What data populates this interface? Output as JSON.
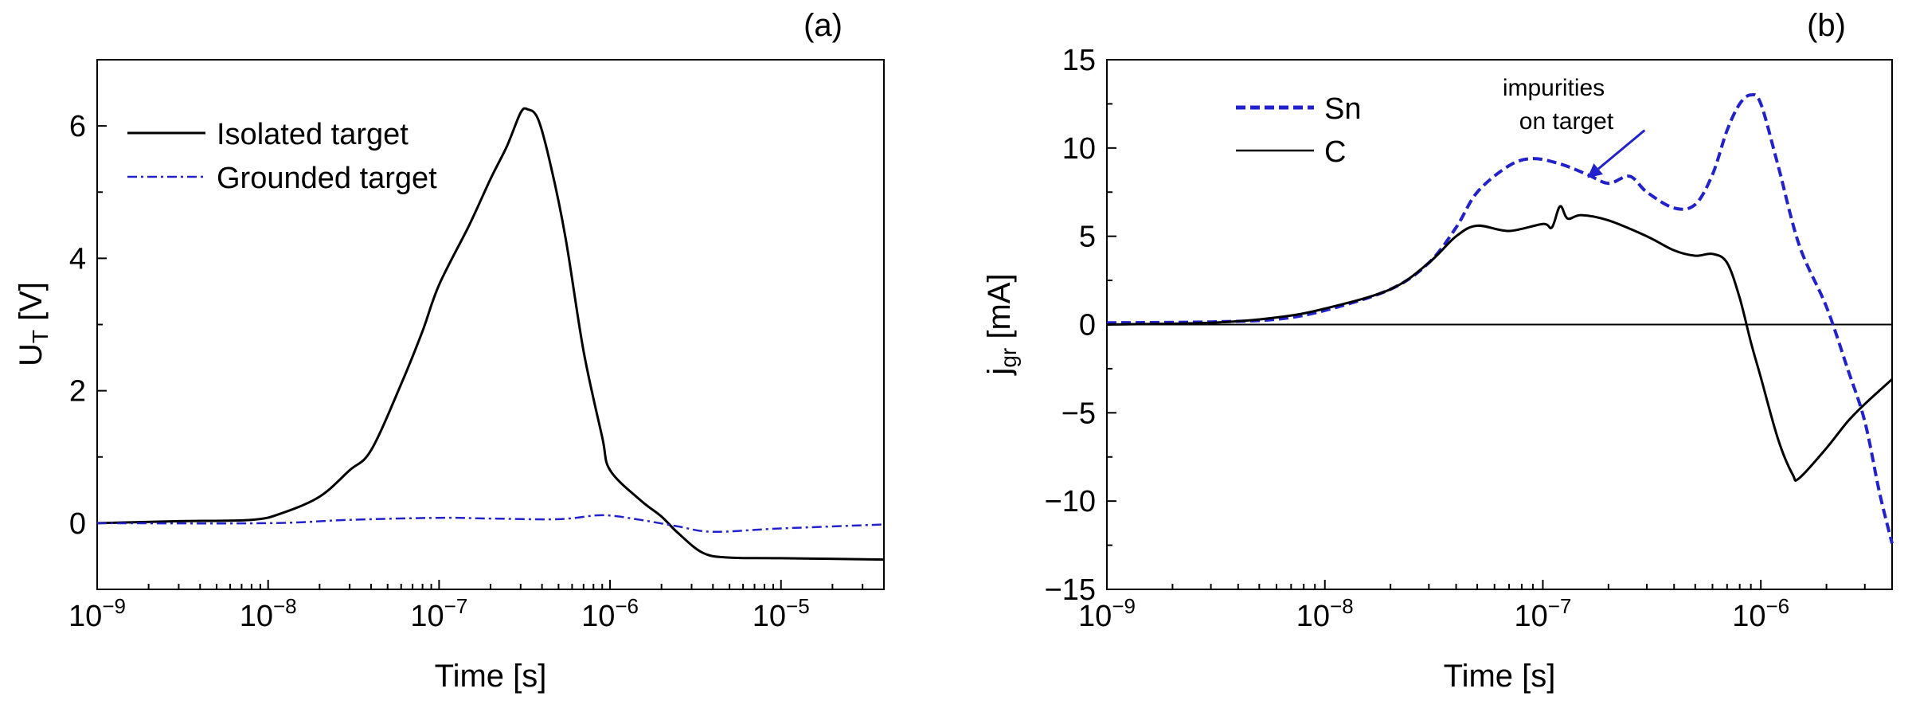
{
  "chart_data": [
    {
      "type": "line",
      "panel_label": "(a)",
      "xlabel": "Time [s]",
      "ylabel_main": "U",
      "ylabel_sub": "T",
      "ylabel_rest": " [V]",
      "xscale": "log",
      "xlim": [
        1e-09,
        4e-05
      ],
      "ylim": [
        -1,
        7
      ],
      "yticks": [
        0,
        2,
        4,
        6
      ],
      "ytick_labels": [
        "0",
        "2",
        "4",
        "6"
      ],
      "xticks": [
        {
          "value": 1e-09,
          "base": "10",
          "exp": "−9"
        },
        {
          "value": 1e-08,
          "base": "10",
          "exp": "−8"
        },
        {
          "value": 1e-07,
          "base": "10",
          "exp": "−7"
        },
        {
          "value": 1e-06,
          "base": "10",
          "exp": "−6"
        },
        {
          "value": 1e-05,
          "base": "10",
          "exp": "−5"
        }
      ],
      "legend_position": "top-left",
      "series": [
        {
          "name": "Isolated target",
          "color": "#000000",
          "style": "solid",
          "x": [
            1e-09,
            3e-09,
            8e-09,
            1.2e-08,
            2e-08,
            3e-08,
            4e-08,
            6e-08,
            8e-08,
            1e-07,
            1.5e-07,
            2e-07,
            2.5e-07,
            3e-07,
            3.3e-07,
            3.8e-07,
            4.5e-07,
            5.5e-07,
            7e-07,
            9e-07,
            1e-06,
            1.5e-06,
            2e-06,
            2.5e-06,
            3.5e-06,
            5e-06,
            1e-05,
            4e-05
          ],
          "y": [
            0.0,
            0.03,
            0.05,
            0.15,
            0.4,
            0.8,
            1.1,
            2.1,
            2.9,
            3.6,
            4.5,
            5.2,
            5.7,
            6.2,
            6.25,
            6.1,
            5.4,
            4.3,
            2.6,
            1.3,
            0.8,
            0.35,
            0.1,
            -0.15,
            -0.45,
            -0.52,
            -0.53,
            -0.55
          ]
        },
        {
          "name": "Grounded target",
          "color": "#2222cc",
          "style": "dashdot",
          "x": [
            1e-09,
            1e-08,
            3e-08,
            1e-07,
            2e-07,
            5e-07,
            9e-07,
            1.5e-06,
            2.5e-06,
            4e-06,
            1e-05,
            4e-05
          ],
          "y": [
            0.0,
            0.0,
            0.05,
            0.08,
            0.07,
            0.06,
            0.12,
            0.05,
            -0.05,
            -0.13,
            -0.08,
            -0.02
          ]
        }
      ]
    },
    {
      "type": "line",
      "panel_label": "(b)",
      "xlabel": "Time [s]",
      "ylabel_main": "j",
      "ylabel_sub": "gr",
      "ylabel_rest": " [mA]",
      "xscale": "log",
      "xlim": [
        1e-09,
        4e-06
      ],
      "ylim": [
        -15,
        15
      ],
      "yticks": [
        -15,
        -10,
        -5,
        0,
        5,
        10,
        15
      ],
      "ytick_labels": [
        "−15",
        "−10",
        "−5",
        "0",
        "5",
        "10",
        "15"
      ],
      "xticks": [
        {
          "value": 1e-09,
          "base": "10",
          "exp": "−9"
        },
        {
          "value": 1e-08,
          "base": "10",
          "exp": "−8"
        },
        {
          "value": 1e-07,
          "base": "10",
          "exp": "−7"
        },
        {
          "value": 1e-06,
          "base": "10",
          "exp": "−6"
        }
      ],
      "zero_line": true,
      "legend_position": "top-left",
      "annotation": {
        "lines": [
          "impurities",
          "on target"
        ],
        "color": "#2222cc",
        "arrow_to": {
          "x": 1.6e-07,
          "y": 8.3
        }
      },
      "series": [
        {
          "name": "Sn",
          "color": "#2222cc",
          "style": "dashed",
          "x": [
            1e-09,
            3e-09,
            6e-09,
            1e-08,
            2e-08,
            3e-08,
            4e-08,
            5e-08,
            7e-08,
            9e-08,
            1.2e-07,
            1.6e-07,
            2e-07,
            2.5e-07,
            3e-07,
            4e-07,
            5e-07,
            6e-07,
            7e-07,
            8e-07,
            9e-07,
            1e-06,
            1.2e-06,
            1.5e-06,
            2e-06,
            2.5e-06,
            3e-06,
            3.5e-06,
            4e-06
          ],
          "y": [
            0.1,
            0.15,
            0.3,
            0.8,
            2.0,
            3.5,
            5.5,
            7.5,
            9.0,
            9.4,
            9.1,
            8.5,
            8.0,
            8.4,
            7.5,
            6.6,
            6.8,
            8.5,
            11.0,
            12.5,
            13.0,
            12.5,
            9.0,
            4.5,
            1.0,
            -2.5,
            -5.5,
            -9.5,
            -12.4
          ]
        },
        {
          "name": "C",
          "color": "#000000",
          "style": "solid",
          "x": [
            1e-09,
            3e-09,
            6e-09,
            1e-08,
            2e-08,
            3e-08,
            4e-08,
            5e-08,
            7e-08,
            1e-07,
            1.1e-07,
            1.2e-07,
            1.3e-07,
            1.5e-07,
            2e-07,
            3e-07,
            4e-07,
            5e-07,
            6e-07,
            7e-07,
            8e-07,
            9e-07,
            1e-06,
            1.2e-06,
            1.4e-06,
            1.5e-06,
            2e-06,
            2.5e-06,
            3e-06,
            4e-06
          ],
          "y": [
            0.0,
            0.1,
            0.4,
            0.9,
            2.0,
            3.5,
            5.0,
            5.6,
            5.3,
            5.7,
            5.5,
            6.7,
            6.0,
            6.2,
            5.9,
            5.0,
            4.2,
            3.9,
            4.0,
            3.5,
            1.5,
            -1.0,
            -3.0,
            -6.5,
            -8.5,
            -8.7,
            -7.0,
            -5.5,
            -4.5,
            -3.1
          ]
        }
      ]
    }
  ]
}
